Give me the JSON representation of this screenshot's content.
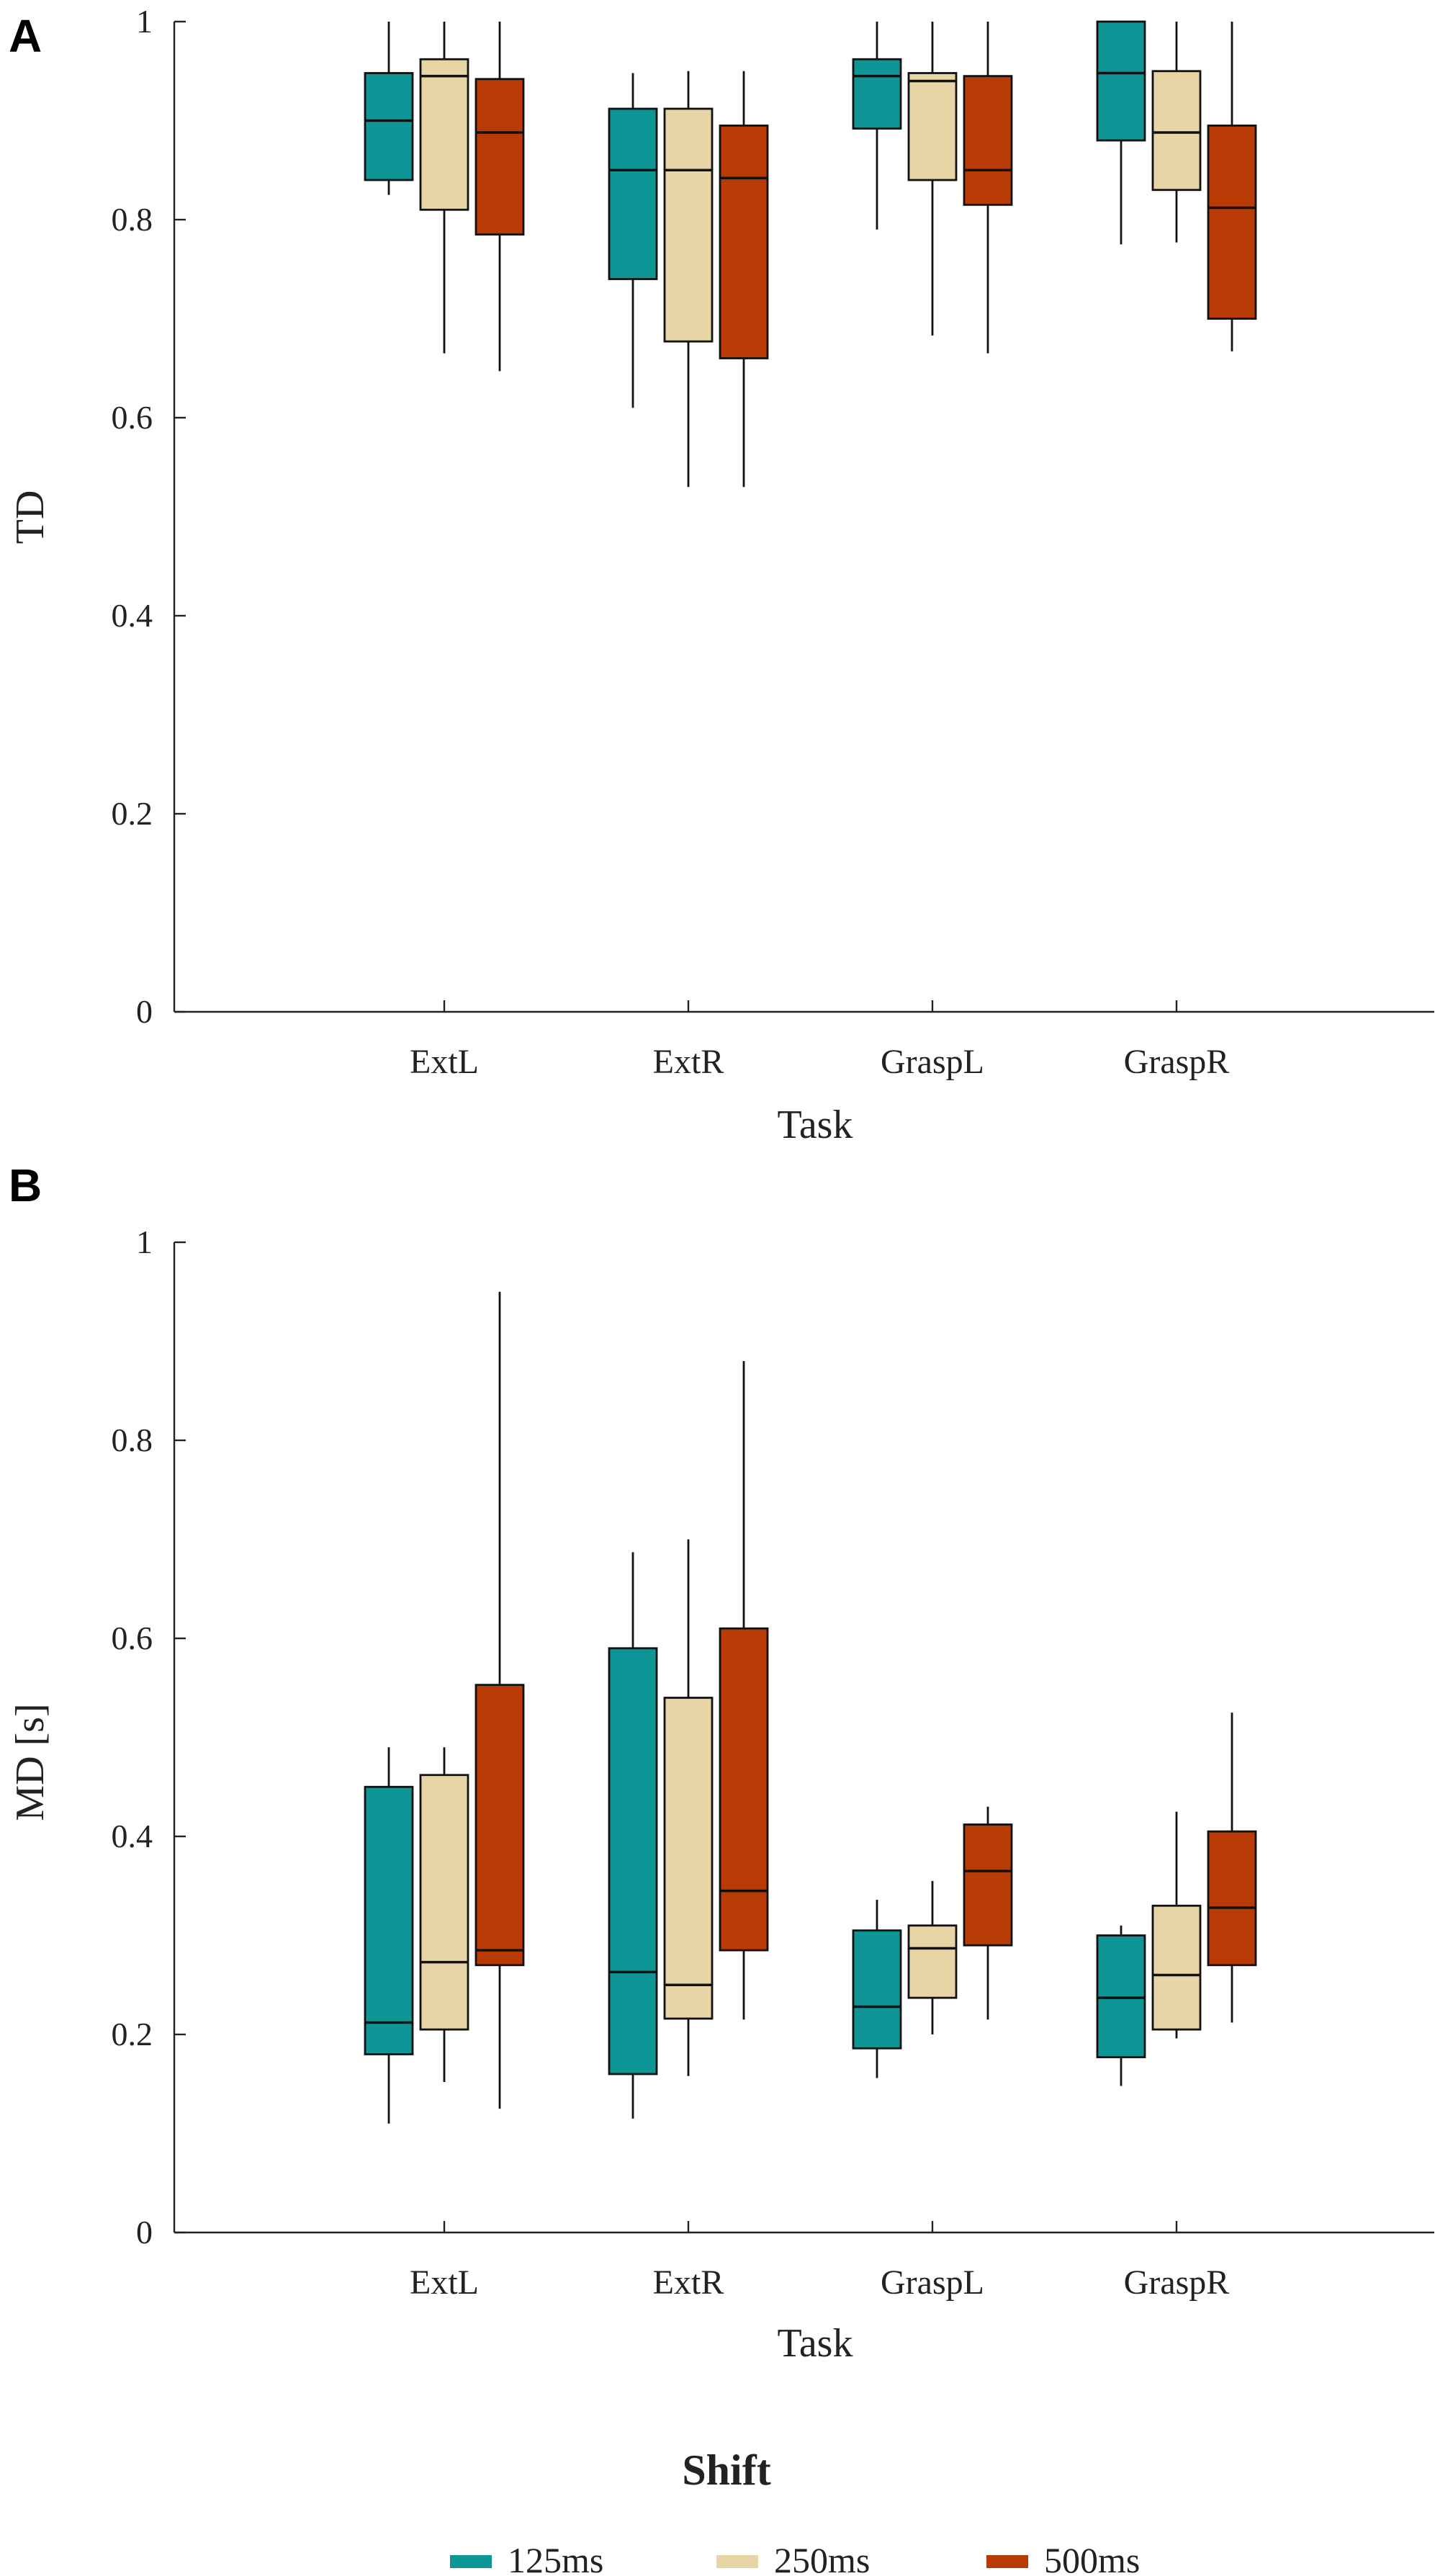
{
  "chart_data": [
    {
      "type": "box",
      "panel": "A",
      "xlabel": "Task",
      "ylabel": "TD",
      "ylim": [
        0,
        1
      ],
      "yticks": [
        "0",
        "0.2",
        "0.4",
        "0.6",
        "0.8",
        "1"
      ],
      "categories": [
        "ExtL",
        "ExtR",
        "GraspL",
        "GraspR"
      ],
      "series": [
        {
          "name": "125ms",
          "color": "#0e9696",
          "boxes": [
            {
              "min": 0.825,
              "q1": 0.84,
              "median": 0.9,
              "q3": 0.948,
              "max": 1.0
            },
            {
              "min": 0.61,
              "q1": 0.74,
              "median": 0.85,
              "q3": 0.912,
              "max": 0.948
            },
            {
              "min": 0.79,
              "q1": 0.892,
              "median": 0.945,
              "q3": 0.962,
              "max": 1.0
            },
            {
              "min": 0.775,
              "q1": 0.88,
              "median": 0.948,
              "q3": 1.0,
              "max": 1.0
            }
          ]
        },
        {
          "name": "250ms",
          "color": "#e8d5a6",
          "boxes": [
            {
              "min": 0.665,
              "q1": 0.81,
              "median": 0.945,
              "q3": 0.962,
              "max": 1.0
            },
            {
              "min": 0.53,
              "q1": 0.677,
              "median": 0.85,
              "q3": 0.912,
              "max": 0.95
            },
            {
              "min": 0.683,
              "q1": 0.84,
              "median": 0.94,
              "q3": 0.948,
              "max": 1.0
            },
            {
              "min": 0.777,
              "q1": 0.83,
              "median": 0.888,
              "q3": 0.95,
              "max": 1.0
            }
          ]
        },
        {
          "name": "500ms",
          "color": "#b83b05",
          "boxes": [
            {
              "min": 0.647,
              "q1": 0.785,
              "median": 0.888,
              "q3": 0.942,
              "max": 1.0
            },
            {
              "min": 0.53,
              "q1": 0.66,
              "median": 0.842,
              "q3": 0.895,
              "max": 0.95
            },
            {
              "min": 0.665,
              "q1": 0.815,
              "median": 0.85,
              "q3": 0.945,
              "max": 1.0
            },
            {
              "min": 0.667,
              "q1": 0.7,
              "median": 0.812,
              "q3": 0.895,
              "max": 1.0
            }
          ]
        }
      ]
    },
    {
      "type": "box",
      "panel": "B",
      "xlabel": "Task",
      "ylabel": "MD [s]",
      "ylim": [
        0,
        1
      ],
      "yticks": [
        "0",
        "0.2",
        "0.4",
        "0.6",
        "0.8",
        "1"
      ],
      "categories": [
        "ExtL",
        "ExtR",
        "GraspL",
        "GraspR"
      ],
      "series": [
        {
          "name": "125ms",
          "color": "#0e9696",
          "boxes": [
            {
              "min": 0.11,
              "q1": 0.18,
              "median": 0.212,
              "q3": 0.45,
              "max": 0.49
            },
            {
              "min": 0.115,
              "q1": 0.16,
              "median": 0.263,
              "q3": 0.59,
              "max": 0.687
            },
            {
              "min": 0.156,
              "q1": 0.186,
              "median": 0.228,
              "q3": 0.305,
              "max": 0.336
            },
            {
              "min": 0.148,
              "q1": 0.177,
              "median": 0.237,
              "q3": 0.3,
              "max": 0.31
            }
          ]
        },
        {
          "name": "250ms",
          "color": "#e8d5a6",
          "boxes": [
            {
              "min": 0.152,
              "q1": 0.205,
              "median": 0.273,
              "q3": 0.462,
              "max": 0.49
            },
            {
              "min": 0.158,
              "q1": 0.216,
              "median": 0.25,
              "q3": 0.54,
              "max": 0.7
            },
            {
              "min": 0.2,
              "q1": 0.237,
              "median": 0.287,
              "q3": 0.31,
              "max": 0.355
            },
            {
              "min": 0.196,
              "q1": 0.205,
              "median": 0.26,
              "q3": 0.33,
              "max": 0.425
            }
          ]
        },
        {
          "name": "500ms",
          "color": "#b83b05",
          "boxes": [
            {
              "min": 0.125,
              "q1": 0.27,
              "median": 0.285,
              "q3": 0.553,
              "max": 0.95
            },
            {
              "min": 0.215,
              "q1": 0.285,
              "median": 0.345,
              "q3": 0.61,
              "max": 0.88
            },
            {
              "min": 0.215,
              "q1": 0.29,
              "median": 0.365,
              "q3": 0.412,
              "max": 0.43
            },
            {
              "min": 0.212,
              "q1": 0.27,
              "median": 0.328,
              "q3": 0.405,
              "max": 0.525
            }
          ]
        }
      ]
    }
  ],
  "legend": {
    "title": "Shift",
    "position": "bottom",
    "items": [
      "125ms",
      "250ms",
      "500ms"
    ]
  }
}
